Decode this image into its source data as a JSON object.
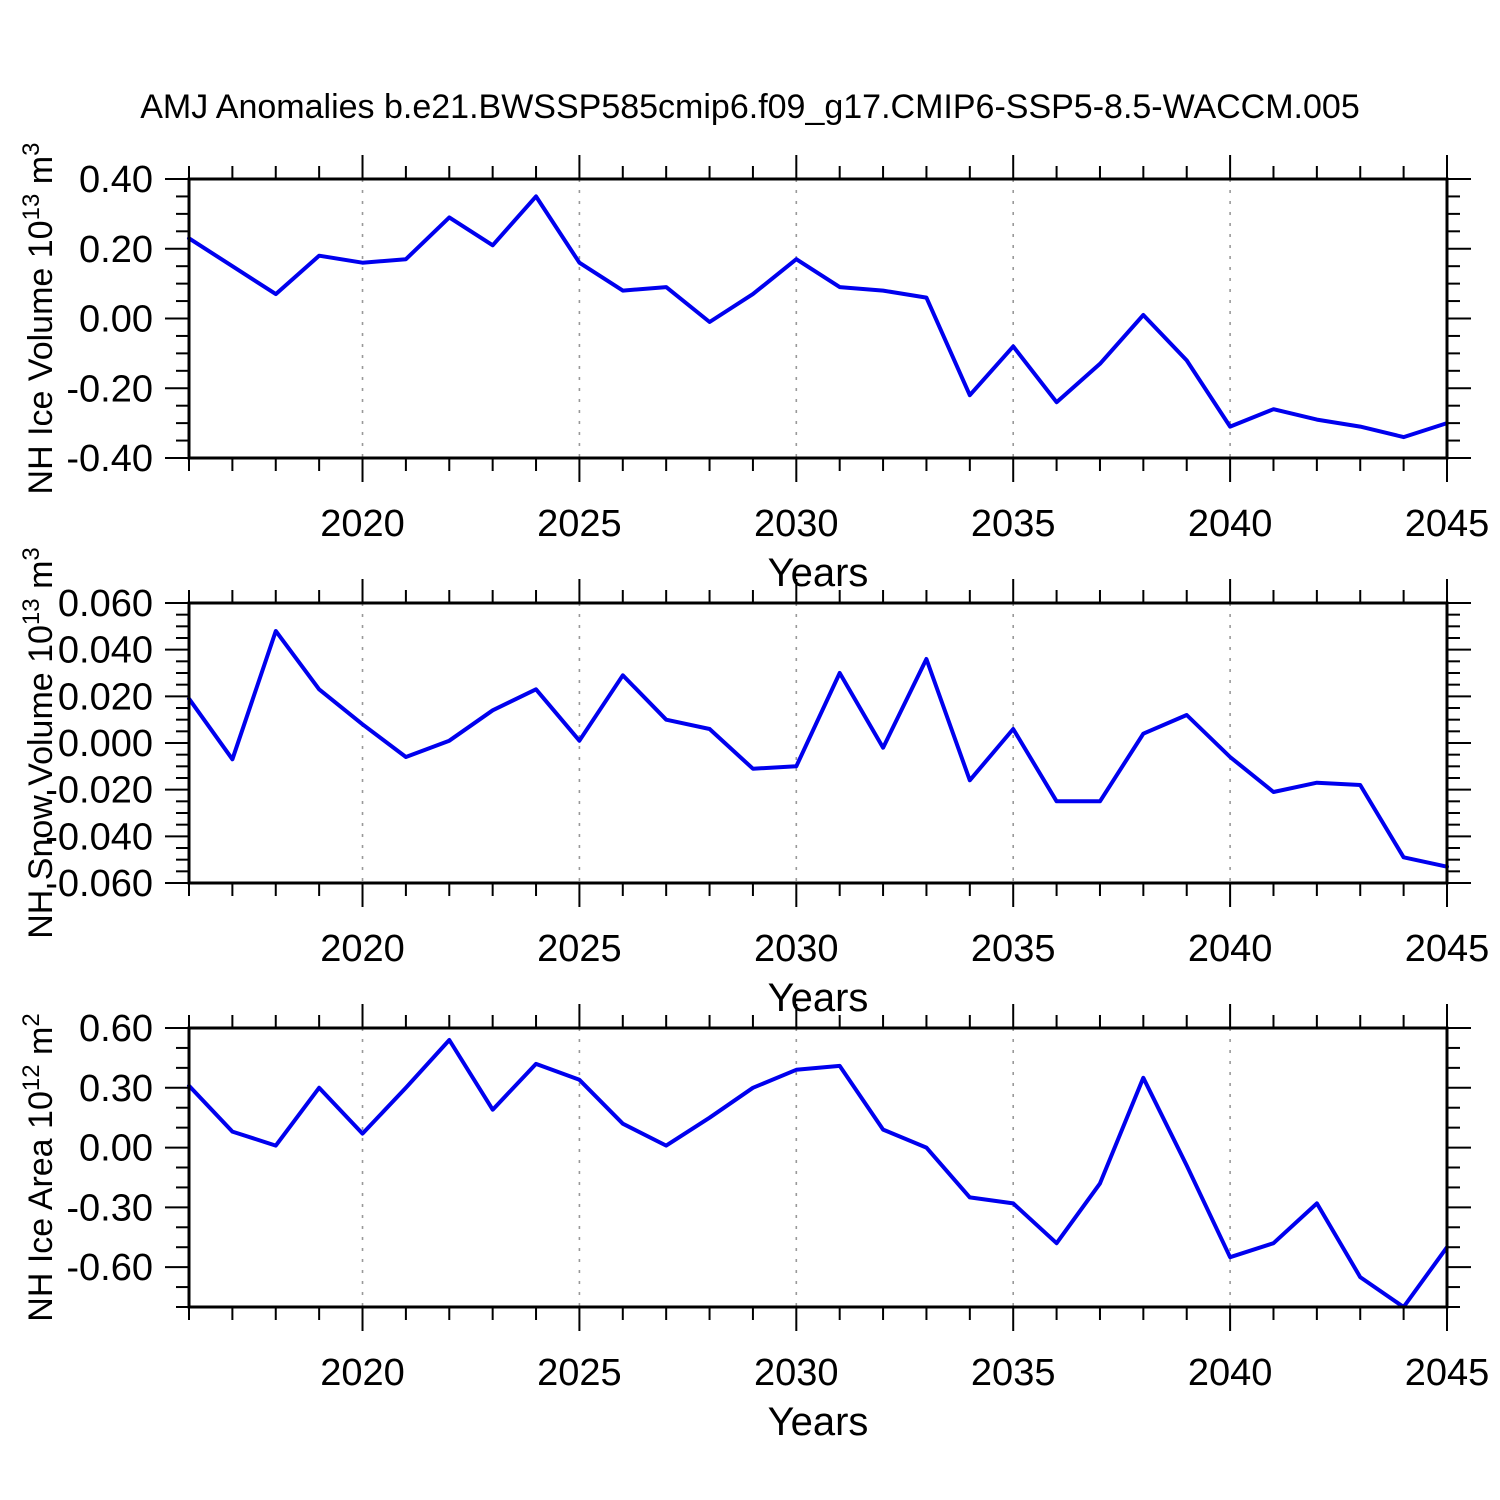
{
  "title": "AMJ Anomalies b.e21.BWSSP585cmip6.f09_g17.CMIP6-SSP5-8.5-WACCM.005",
  "colors": {
    "line": "#0000ee",
    "grid": "#999999",
    "axis": "#000000",
    "background": "#ffffff"
  },
  "chart_data": [
    {
      "id": "nh-ice-volume",
      "type": "line",
      "xlabel": "Years",
      "ylabel": "NH Ice Volume 10^13 m^3",
      "ylabel_parts": [
        {
          "text": "NH Ice Volume 10",
          "sup": false
        },
        {
          "text": "13",
          "sup": true
        },
        {
          "text": " m",
          "sup": false
        },
        {
          "text": "3",
          "sup": true
        }
      ],
      "x": [
        2016,
        2017,
        2018,
        2019,
        2020,
        2021,
        2022,
        2023,
        2024,
        2025,
        2026,
        2027,
        2028,
        2029,
        2030,
        2031,
        2032,
        2033,
        2034,
        2035,
        2036,
        2037,
        2038,
        2039,
        2040,
        2041,
        2042,
        2043,
        2044,
        2045
      ],
      "values": [
        0.23,
        0.15,
        0.07,
        0.18,
        0.16,
        0.17,
        0.29,
        0.21,
        0.35,
        0.16,
        0.08,
        0.09,
        -0.01,
        0.07,
        0.17,
        0.09,
        0.08,
        0.06,
        -0.22,
        -0.08,
        -0.24,
        -0.13,
        0.01,
        -0.12,
        -0.31,
        -0.26,
        -0.29,
        -0.31,
        -0.34,
        -0.3
      ],
      "xlim": [
        2016,
        2045
      ],
      "ylim": [
        -0.4,
        0.4
      ],
      "xticks": [
        2020,
        2025,
        2030,
        2035,
        2040,
        2045
      ],
      "xtick_labels": [
        "2020",
        "2025",
        "2030",
        "2035",
        "2040",
        "2045"
      ],
      "xminor_step": 1,
      "yticks": [
        0.4,
        0.2,
        0.0,
        -0.2,
        -0.4
      ],
      "ytick_labels": [
        "0.40",
        "0.20",
        "0.00",
        "-0.20",
        "-0.40"
      ],
      "yminor_step": 0.05,
      "gridlines_x": [
        2020,
        2025,
        2030,
        2035,
        2040
      ],
      "grid": true,
      "legend": "none"
    },
    {
      "id": "nh-snow-volume",
      "type": "line",
      "xlabel": "Years",
      "ylabel": "NH Snow Volume 10^13 m^3",
      "ylabel_parts": [
        {
          "text": "NH Snow Volume 10",
          "sup": false
        },
        {
          "text": "13",
          "sup": true
        },
        {
          "text": " m",
          "sup": false
        },
        {
          "text": "3",
          "sup": true
        }
      ],
      "x": [
        2016,
        2017,
        2018,
        2019,
        2020,
        2021,
        2022,
        2023,
        2024,
        2025,
        2026,
        2027,
        2028,
        2029,
        2030,
        2031,
        2032,
        2033,
        2034,
        2035,
        2036,
        2037,
        2038,
        2039,
        2040,
        2041,
        2042,
        2043,
        2044,
        2045
      ],
      "values": [
        0.019,
        -0.007,
        0.048,
        0.023,
        0.008,
        -0.006,
        0.001,
        0.014,
        0.023,
        0.001,
        0.029,
        0.01,
        0.006,
        -0.011,
        -0.01,
        0.03,
        -0.002,
        0.036,
        -0.016,
        0.006,
        -0.025,
        -0.025,
        0.004,
        0.012,
        -0.006,
        -0.021,
        -0.017,
        -0.018,
        -0.049,
        -0.053
      ],
      "xlim": [
        2016,
        2045
      ],
      "ylim": [
        -0.06,
        0.06
      ],
      "xticks": [
        2020,
        2025,
        2030,
        2035,
        2040,
        2045
      ],
      "xtick_labels": [
        "2020",
        "2025",
        "2030",
        "2035",
        "2040",
        "2045"
      ],
      "xminor_step": 1,
      "yticks": [
        0.06,
        0.04,
        0.02,
        0.0,
        -0.02,
        -0.04,
        -0.06
      ],
      "ytick_labels": [
        "0.060",
        "0.040",
        "0.020",
        "0.000",
        "-0.020",
        "-0.040",
        "-0.060"
      ],
      "yminor_step": 0.005,
      "gridlines_x": [
        2020,
        2025,
        2030,
        2035,
        2040
      ],
      "grid": true,
      "legend": "none"
    },
    {
      "id": "nh-ice-area",
      "type": "line",
      "xlabel": "Years",
      "ylabel": "NH Ice Area 10^12 m^2",
      "ylabel_parts": [
        {
          "text": "NH Ice Area 10",
          "sup": false
        },
        {
          "text": "12",
          "sup": true
        },
        {
          "text": " m",
          "sup": false
        },
        {
          "text": "2",
          "sup": true
        }
      ],
      "x": [
        2016,
        2017,
        2018,
        2019,
        2020,
        2021,
        2022,
        2023,
        2024,
        2025,
        2026,
        2027,
        2028,
        2029,
        2030,
        2031,
        2032,
        2033,
        2034,
        2035,
        2036,
        2037,
        2038,
        2039,
        2040,
        2041,
        2042,
        2043,
        2044,
        2045
      ],
      "values": [
        0.31,
        0.08,
        0.01,
        0.3,
        0.07,
        0.3,
        0.54,
        0.19,
        0.42,
        0.34,
        0.12,
        0.01,
        0.15,
        0.3,
        0.39,
        0.41,
        0.09,
        0.0,
        -0.25,
        -0.28,
        -0.48,
        -0.18,
        0.35,
        -0.09,
        -0.55,
        -0.48,
        -0.28,
        -0.65,
        -0.8,
        -0.5
      ],
      "xlim": [
        2016,
        2045
      ],
      "ylim": [
        -0.8,
        0.6
      ],
      "xticks": [
        2020,
        2025,
        2030,
        2035,
        2040,
        2045
      ],
      "xtick_labels": [
        "2020",
        "2025",
        "2030",
        "2035",
        "2040",
        "2045"
      ],
      "xminor_step": 1,
      "yticks": [
        0.6,
        0.3,
        0.0,
        -0.3,
        -0.6
      ],
      "ytick_labels": [
        "0.60",
        "0.30",
        "0.00",
        "-0.30",
        "-0.60"
      ],
      "yminor_step": 0.1,
      "gridlines_x": [
        2020,
        2025,
        2030,
        2035,
        2040
      ],
      "grid": true,
      "legend": "none"
    }
  ]
}
